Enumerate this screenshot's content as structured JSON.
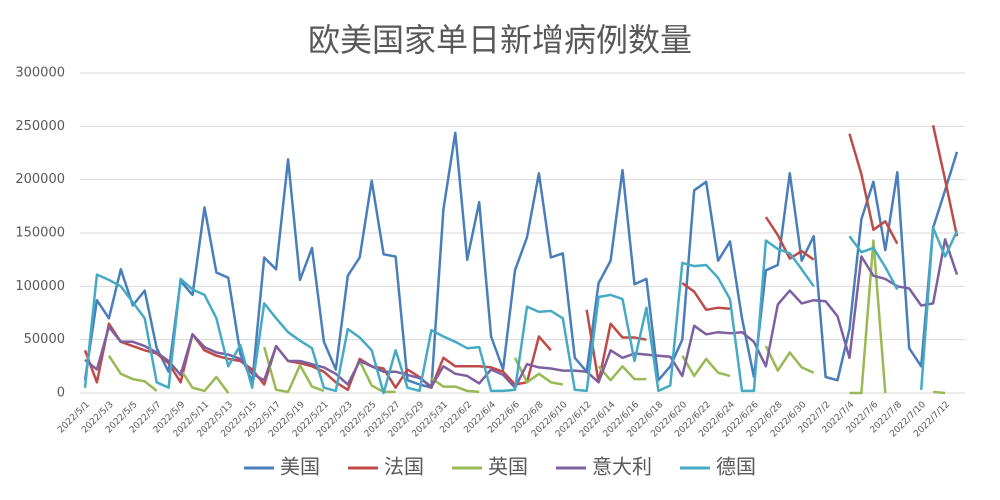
{
  "chart_data": {
    "type": "line",
    "title": "欧美国家单日新增病例数量",
    "categories": [
      "2022/5/1",
      null,
      "2022/5/3",
      null,
      "2022/5/5",
      null,
      "2022/5/7",
      null,
      "2022/5/9",
      null,
      "2022/5/11",
      null,
      "2022/5/13",
      null,
      "2022/5/15",
      null,
      "2022/5/17",
      null,
      "2022/5/19",
      null,
      "2022/5/21",
      null,
      "2022/5/23",
      null,
      "2022/5/25",
      null,
      "2022/5/27",
      null,
      "2022/5/29",
      null,
      "2022/5/31",
      null,
      "2022/6/2",
      null,
      "2022/6/4",
      null,
      "2022/6/6",
      null,
      "2022/6/8",
      null,
      "2022/6/10",
      null,
      "2022/6/12",
      null,
      "2022/6/14",
      null,
      "2022/6/16",
      null,
      "2022/6/18",
      null,
      "2022/6/20",
      null,
      "2022/6/22",
      null,
      "2022/6/24",
      null,
      "2022/6/26",
      null,
      "2022/6/28",
      null,
      "2022/6/30",
      null,
      "2022/7/2",
      null,
      "2022/7/4",
      null,
      "2022/7/6",
      null,
      "2022/7/8",
      null,
      "2022/7/10",
      null,
      "2022/7/12",
      null
    ],
    "series": [
      {
        "name": "美国",
        "color": "#4a7ebb",
        "values": [
          12000,
          87000,
          70000,
          116000,
          82000,
          96000,
          42000,
          20000,
          105000,
          92000,
          174000,
          113000,
          108000,
          37000,
          10000,
          127000,
          116000,
          219000,
          106000,
          136000,
          48000,
          22000,
          110000,
          127000,
          199000,
          130000,
          128000,
          12000,
          8000,
          5000,
          172000,
          244000,
          125000,
          179000,
          53000,
          22000,
          115000,
          146000,
          206000,
          127000,
          131000,
          33000,
          20000,
          103000,
          124000,
          209000,
          102000,
          107000,
          12000,
          25000,
          50000,
          190000,
          198000,
          124000,
          142000,
          70000,
          15000,
          115000,
          120000,
          206000,
          124000,
          147000,
          15000,
          12000,
          60000,
          163000,
          198000,
          134000,
          207000,
          42000,
          25000,
          155000,
          190000,
          226000
        ]
      },
      {
        "name": "法国",
        "color": "#be4b48",
        "values": [
          40000,
          10000,
          65000,
          48000,
          44000,
          40000,
          37000,
          28000,
          10000,
          55000,
          40000,
          35000,
          32000,
          30000,
          22000,
          8000,
          44000,
          30000,
          28000,
          25000,
          20000,
          10000,
          3000,
          32000,
          25000,
          23000,
          5000,
          22000,
          15000,
          5000,
          33000,
          25000,
          25000,
          25000,
          24000,
          20000,
          8000,
          10000,
          53000,
          40000,
          null,
          null,
          78000,
          10000,
          65000,
          52000,
          52000,
          50000,
          null,
          null,
          103000,
          95000,
          78000,
          80000,
          79000,
          null,
          null,
          165000,
          148000,
          126000,
          133000,
          125000,
          null,
          null,
          243000,
          205000,
          153000,
          161000,
          140000,
          null,
          null,
          251000,
          200000,
          147000
        ]
      },
      {
        "name": "英国",
        "color": "#98b954",
        "values": [
          null,
          null,
          35000,
          18000,
          13000,
          11000,
          2000,
          null,
          22000,
          5000,
          2000,
          15000,
          0,
          null,
          null,
          43000,
          3000,
          1000,
          26000,
          6000,
          2000,
          null,
          null,
          30000,
          7000,
          1000,
          1000,
          null,
          null,
          14000,
          6000,
          6000,
          2000,
          1000,
          null,
          null,
          33000,
          10000,
          18000,
          10000,
          8000,
          null,
          null,
          25000,
          12000,
          25000,
          13000,
          13000,
          null,
          null,
          35000,
          16000,
          32000,
          19000,
          16000,
          null,
          null,
          44000,
          21000,
          38000,
          24000,
          19000,
          null,
          null,
          0,
          0,
          143000,
          0,
          null,
          null,
          null,
          1000,
          0,
          null
        ]
      },
      {
        "name": "意大利",
        "color": "#7d60a0",
        "values": [
          31000,
          22000,
          62000,
          48000,
          48000,
          44000,
          38000,
          30000,
          17000,
          55000,
          43000,
          38000,
          36000,
          32000,
          18000,
          12000,
          44000,
          30000,
          30000,
          27000,
          24000,
          18000,
          8000,
          30000,
          25000,
          20000,
          20000,
          17000,
          14000,
          6000,
          25000,
          18000,
          16000,
          9000,
          22000,
          17000,
          5000,
          27000,
          24000,
          23000,
          21000,
          21000,
          20000,
          10000,
          40000,
          33000,
          37000,
          36000,
          35000,
          34000,
          16000,
          63000,
          55000,
          57000,
          56000,
          57000,
          48000,
          25000,
          83000,
          96000,
          84000,
          87000,
          86000,
          72000,
          33000,
          128000,
          110000,
          107000,
          100000,
          98000,
          82000,
          84000,
          144000,
          111000
        ]
      },
      {
        "name": "德国",
        "color": "#46aac5",
        "values": [
          5000,
          111000,
          106000,
          100000,
          85000,
          70000,
          10000,
          5000,
          107000,
          97000,
          92000,
          70000,
          25000,
          45000,
          5000,
          84000,
          70000,
          57000,
          49000,
          42000,
          5000,
          2000,
          60000,
          52000,
          40000,
          0,
          40000,
          5000,
          2000,
          59000,
          53000,
          48000,
          42000,
          43000,
          2000,
          2000,
          3000,
          81000,
          76000,
          77000,
          70000,
          3000,
          2000,
          90000,
          92000,
          88000,
          30000,
          80000,
          2000,
          7000,
          122000,
          119000,
          120000,
          108000,
          88000,
          2000,
          2000,
          143000,
          135000,
          131000,
          116000,
          100000,
          null,
          null,
          147000,
          132000,
          136000,
          118000,
          97000,
          null,
          3000,
          155000,
          128000,
          152000
        ]
      }
    ],
    "ylim": [
      0,
      300000
    ],
    "yticks": [
      0,
      50000,
      100000,
      150000,
      200000,
      250000,
      300000
    ],
    "grid": true,
    "legend": "bottom"
  }
}
